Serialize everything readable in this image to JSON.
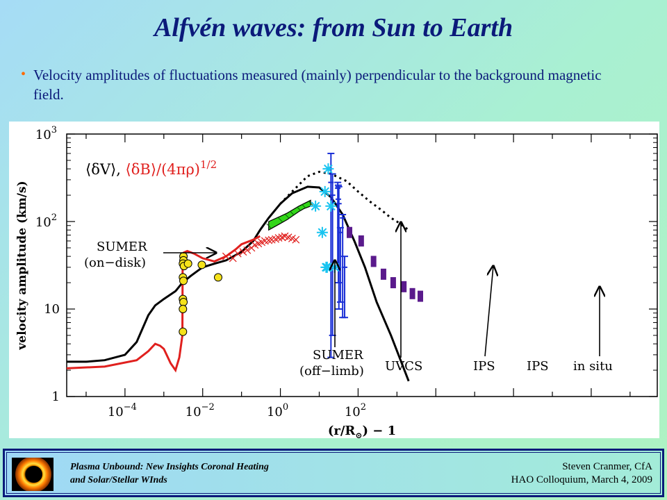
{
  "slide": {
    "title": "Alfvén waves:  from Sun to Earth",
    "bullet": "Velocity amplitudes of fluctuations measured (mainly) perpendicular to the background magnetic field."
  },
  "footer": {
    "left_line1": "Plasma Unbound:  New Insights Coronal Heating",
    "left_line2": "and Solar/Stellar WInds",
    "right_line1": "Steven Cranmer,  CfA",
    "right_line2": "HAO Colloquium, March 4, 2009"
  },
  "colors": {
    "title": "#0b1a7a",
    "model_dV": "#000000",
    "model_dB": "#e0201e",
    "sumer_on_disk": "#f5e21a",
    "uvcs": "#33d61a",
    "ips_asterisk": "#19c4f0",
    "ips_errorbar": "#1a2fd6",
    "in_situ": "#5a1a8c"
  },
  "chart_data": {
    "type": "scatter",
    "xlabel": "(r/R",
    "xlabel_sub": "⊙",
    "xlabel_suffix": ") − 1",
    "ylabel": "velocity amplitude (km/s)",
    "x_log": true,
    "y_log": true,
    "xlim_exp": [
      -5.5,
      9.7
    ],
    "ylim_exp": [
      0,
      3
    ],
    "x_ticks": [
      {
        "base": "10",
        "exp": "−4",
        "value": 0.0001
      },
      {
        "base": "10",
        "exp": "−2",
        "value": 0.01
      },
      {
        "base": "10",
        "exp": "0",
        "value": 1
      },
      {
        "base": "10",
        "exp": "2",
        "value": 100
      }
    ],
    "y_ticks": [
      {
        "label": "1",
        "value": 1
      },
      {
        "label": "10",
        "value": 10
      },
      {
        "base": "10",
        "exp": "2",
        "value": 100
      },
      {
        "base": "10",
        "exp": "3",
        "value": 1000
      }
    ],
    "legend": {
      "part1": "⟨δV⟩,",
      "part2": "⟨δB⟩/(4πρ)",
      "part2_exp": "1/2"
    },
    "annotations": {
      "sumer_on_disk_1": "SUMER",
      "sumer_on_disk_2": "(on−disk)",
      "sumer_off_limb_1": "SUMER",
      "sumer_off_limb_2": "(off−limb)",
      "uvcs": "UVCS",
      "ips_1": "IPS",
      "ips_2": "IPS",
      "in_situ": "in situ"
    },
    "series": [
      {
        "key": "model_dV",
        "style": "solid-black",
        "x": [
          3e-06,
          1e-05,
          3e-05,
          0.0001,
          0.0002,
          0.0004,
          0.0006,
          0.001,
          0.002,
          0.003,
          0.005,
          0.008,
          0.01,
          0.02,
          0.04,
          0.1,
          0.2,
          0.3,
          0.5,
          1,
          2,
          5,
          10,
          20,
          40,
          80,
          150,
          300,
          700,
          2000
        ],
        "y": [
          2.5,
          2.5,
          2.6,
          3.0,
          4.2,
          8.5,
          11,
          13,
          16,
          20,
          24,
          28,
          30,
          33,
          36,
          45,
          60,
          80,
          110,
          160,
          210,
          250,
          245,
          190,
          120,
          60,
          30,
          12,
          5,
          1.5
        ]
      },
      {
        "key": "model_dB",
        "style": "solid-red",
        "x": [
          3e-06,
          3e-05,
          0.0002,
          0.0004,
          0.0006,
          0.0008,
          0.001,
          0.0015,
          0.002,
          0.0025,
          0.003,
          0.00305,
          0.0032,
          0.004,
          0.006,
          0.01,
          0.02,
          0.04,
          0.07,
          0.1,
          0.2,
          0.3
        ],
        "y": [
          2.1,
          2.2,
          2.6,
          3.3,
          4.0,
          3.8,
          3.5,
          2.4,
          2.0,
          2.8,
          5.0,
          40,
          44,
          46,
          43,
          38,
          35,
          40,
          48,
          55,
          62,
          68
        ]
      },
      {
        "key": "model_dB_extrapolated",
        "style": "dotted-black",
        "x": [
          1,
          2,
          5,
          10,
          20,
          50,
          100,
          200,
          400,
          700,
          1000,
          2000
        ],
        "y": [
          160,
          220,
          330,
          370,
          350,
          290,
          220,
          170,
          135,
          110,
          100,
          80
        ]
      },
      {
        "key": "sumer_on_disk",
        "style": "yellow-circles",
        "x": [
          0.0032,
          0.0032,
          0.0031,
          0.0033,
          0.0031,
          0.0032,
          0.0031,
          0.0032,
          0.0031,
          0.0031,
          0.0042,
          0.0095,
          0.025
        ],
        "y": [
          40,
          36,
          33,
          31,
          23,
          21,
          13,
          12,
          10,
          5.5,
          33,
          32,
          23
        ]
      },
      {
        "key": "sumer_off_limb",
        "style": "red-crosses",
        "x": [
          0.04,
          0.06,
          0.08,
          0.11,
          0.14,
          0.18,
          0.22,
          0.27,
          0.33,
          0.4,
          0.5,
          0.6,
          0.75,
          0.9,
          1.1,
          1.3,
          1.6,
          2.0,
          2.5
        ],
        "y": [
          40,
          38,
          43,
          45,
          47,
          50,
          54,
          56,
          58,
          60,
          61,
          62,
          63,
          65,
          66,
          68,
          66,
          64,
          62
        ]
      },
      {
        "key": "uvcs_band",
        "style": "green-band",
        "x": [
          0.5,
          1,
          1.5,
          2,
          3,
          4,
          6
        ],
        "y_low": [
          80,
          95,
          105,
          115,
          130,
          140,
          150
        ],
        "y_high": [
          100,
          115,
          125,
          135,
          150,
          160,
          175
        ]
      },
      {
        "key": "ips_asterisks",
        "style": "cyan-asterisks",
        "x": [
          17,
          14,
          8,
          20,
          12,
          25,
          16,
          15
        ],
        "y": [
          400,
          220,
          150,
          150,
          75,
          30,
          30,
          30
        ]
      },
      {
        "key": "ips_errorbars",
        "style": "blue-errorbars",
        "x": [
          20,
          22,
          30,
          31,
          32,
          40,
          35,
          45
        ],
        "y": [
          280,
          200,
          240,
          180,
          160,
          110,
          75,
          30
        ],
        "y_low": [
          2.8,
          5,
          30,
          20,
          10,
          8,
          12,
          8
        ],
        "y_high": [
          600,
          350,
          280,
          260,
          250,
          120,
          85,
          40
        ]
      },
      {
        "key": "in_situ",
        "style": "purple-squares",
        "x": [
          60,
          120,
          250,
          450,
          800,
          1500,
          2500,
          4000
        ],
        "y": [
          75,
          60,
          35,
          25,
          20,
          18,
          15,
          14
        ]
      }
    ]
  }
}
